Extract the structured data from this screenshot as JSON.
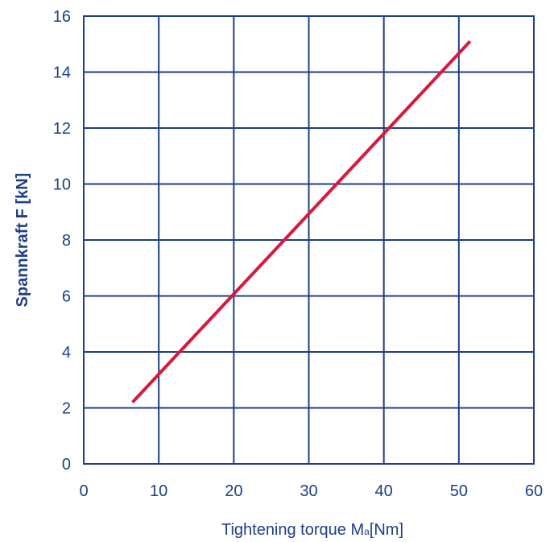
{
  "chart_data": {
    "type": "line",
    "title": "",
    "ylabel": "Spannkraft F [kN]",
    "xlabel": {
      "prefix": "Tightening torque M",
      "subscript": "a",
      "suffix": "[Nm]"
    },
    "xlim": [
      0,
      60
    ],
    "ylim": [
      0,
      16
    ],
    "x_ticks": [
      "0",
      "10",
      "20",
      "30",
      "40",
      "50",
      "60"
    ],
    "y_ticks": [
      "0",
      "2",
      "4",
      "6",
      "8",
      "10",
      "12",
      "14",
      "16"
    ],
    "grid": true,
    "legend": "none",
    "series": [
      {
        "color": "#d7193e",
        "points": [
          [
            6.5,
            2.2
          ],
          [
            51.5,
            15.1
          ]
        ]
      }
    ],
    "colors": {
      "axis": "#1d3f86",
      "grid": "#1d3f86"
    }
  }
}
